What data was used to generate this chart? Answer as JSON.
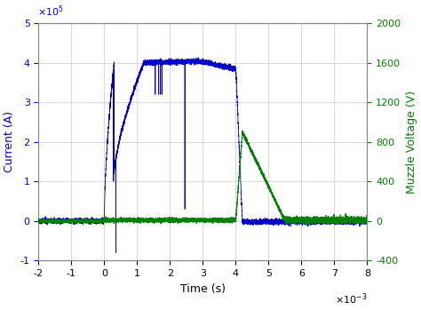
{
  "xlabel": "Time (s)",
  "ylabel_left": "Current (A)",
  "ylabel_right": "Muzzle Voltage (V)",
  "xlim": [
    -0.002,
    0.008
  ],
  "ylim_left": [
    -100000.0,
    500000.0
  ],
  "ylim_right": [
    -400,
    2000
  ],
  "yticks_left": [
    -100000.0,
    0,
    100000.0,
    200000.0,
    300000.0,
    400000.0,
    500000.0
  ],
  "yticks_right": [
    -400,
    0,
    400,
    800,
    1200,
    1600,
    2000
  ],
  "xticks": [
    -0.002,
    -0.001,
    0,
    0.001,
    0.002,
    0.003,
    0.004,
    0.005,
    0.006,
    0.007,
    0.008
  ],
  "color_current": "#0000CC",
  "color_voltage": "#008000",
  "background_color": "#ffffff",
  "grid_color": "#c8c8c8",
  "figsize": [
    4.74,
    3.49
  ],
  "dpi": 100
}
